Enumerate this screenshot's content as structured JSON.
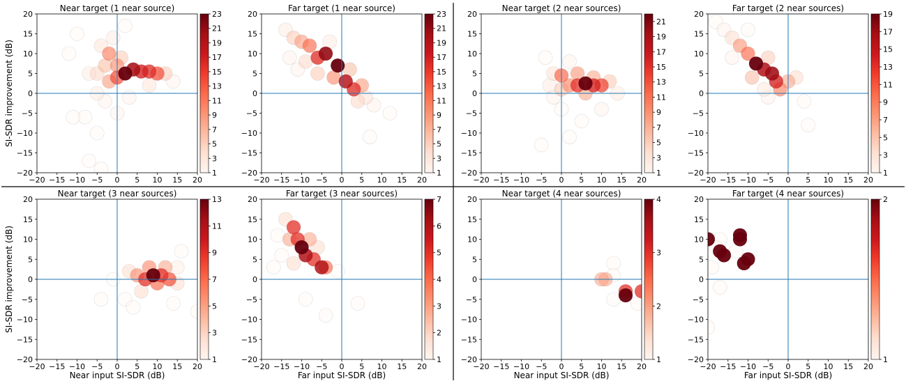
{
  "chart_data": [
    {
      "type": "scatter",
      "title": "Near target (1 near source)",
      "xlabel": "",
      "ylabel": "SI-SDR improvement (dB)",
      "xlim": [
        -20,
        20
      ],
      "ylim": [
        -20,
        20
      ],
      "xticks": [
        "−20",
        "−15",
        "−10",
        "−5",
        "0",
        "5",
        "10",
        "15",
        "20"
      ],
      "yticks": [
        "20",
        "15",
        "10",
        "5",
        "0",
        "−5",
        "−10",
        "−15",
        "−20"
      ],
      "colorbar": {
        "min": 1,
        "max": 23,
        "ticks": [
          "1",
          "3",
          "5",
          "7",
          "9",
          "11",
          "13",
          "15",
          "17",
          "19",
          "21",
          "23"
        ]
      },
      "clusters": [
        {
          "x": 2,
          "y": 5,
          "count": 23
        },
        {
          "x": 4,
          "y": 6,
          "count": 20
        },
        {
          "x": 6,
          "y": 5.5,
          "count": 17
        },
        {
          "x": 8,
          "y": 5.5,
          "count": 16
        },
        {
          "x": 10,
          "y": 5,
          "count": 14
        },
        {
          "x": 0,
          "y": 4,
          "count": 14
        },
        {
          "x": -2,
          "y": 3,
          "count": 9
        },
        {
          "x": -2,
          "y": 10,
          "count": 11
        },
        {
          "x": -3,
          "y": 7,
          "count": 7
        },
        {
          "x": -5,
          "y": 5,
          "count": 5
        },
        {
          "x": 0,
          "y": 7,
          "count": 10
        },
        {
          "x": 12,
          "y": 5,
          "count": 6
        },
        {
          "x": -4,
          "y": 12,
          "count": 4
        },
        {
          "x": -7,
          "y": 5,
          "count": 3
        },
        {
          "x": -1,
          "y": 14,
          "count": 3
        },
        {
          "x": 1,
          "y": 9,
          "count": 6
        },
        {
          "x": -5,
          "y": 0,
          "count": 3
        },
        {
          "x": -3,
          "y": -2,
          "count": 2
        },
        {
          "x": -8,
          "y": -6,
          "count": 1
        },
        {
          "x": -11,
          "y": -6,
          "count": 1
        },
        {
          "x": -5,
          "y": -10,
          "count": 1
        },
        {
          "x": -7,
          "y": -17,
          "count": 1
        },
        {
          "x": -4,
          "y": -19,
          "count": 1
        },
        {
          "x": 0,
          "y": -5,
          "count": 2
        },
        {
          "x": 3,
          "y": -1,
          "count": 2
        },
        {
          "x": -10,
          "y": 15,
          "count": 1
        },
        {
          "x": -12,
          "y": 10,
          "count": 1
        },
        {
          "x": 2,
          "y": 17,
          "count": 1
        },
        {
          "x": 14,
          "y": 3,
          "count": 2
        },
        {
          "x": 8,
          "y": 2,
          "count": 4
        }
      ]
    },
    {
      "type": "scatter",
      "title": "Far target (1 near source)",
      "xlabel": "",
      "ylabel": "",
      "xlim": [
        -20,
        20
      ],
      "ylim": [
        -20,
        20
      ],
      "xticks": [
        "−20",
        "−15",
        "−10",
        "−5",
        "0",
        "5",
        "10",
        "15",
        "20"
      ],
      "yticks": [
        "20",
        "15",
        "10",
        "5",
        "0",
        "−5",
        "−10",
        "−15",
        "−20"
      ],
      "colorbar": {
        "min": 1,
        "max": 23,
        "ticks": [
          "1",
          "3",
          "5",
          "7",
          "9",
          "11",
          "13",
          "15",
          "17",
          "19",
          "21",
          "23"
        ]
      },
      "clusters": [
        {
          "x": -4,
          "y": 10,
          "count": 21
        },
        {
          "x": -1,
          "y": 7,
          "count": 23
        },
        {
          "x": 1,
          "y": 3,
          "count": 19
        },
        {
          "x": 3,
          "y": 1,
          "count": 16
        },
        {
          "x": -6,
          "y": 9,
          "count": 16
        },
        {
          "x": -8,
          "y": 12,
          "count": 12
        },
        {
          "x": -10,
          "y": 13,
          "count": 9
        },
        {
          "x": -12,
          "y": 14,
          "count": 6
        },
        {
          "x": -14,
          "y": 16,
          "count": 3
        },
        {
          "x": 5,
          "y": 2,
          "count": 9
        },
        {
          "x": 6,
          "y": -1,
          "count": 4
        },
        {
          "x": -2,
          "y": 4,
          "count": 10
        },
        {
          "x": -6,
          "y": 5,
          "count": 6
        },
        {
          "x": 2,
          "y": 6,
          "count": 7
        },
        {
          "x": -9,
          "y": 8,
          "count": 5
        },
        {
          "x": 8,
          "y": -3,
          "count": 2
        },
        {
          "x": 12,
          "y": -5,
          "count": 1
        },
        {
          "x": 7,
          "y": -11,
          "count": 1
        },
        {
          "x": -13,
          "y": 9,
          "count": 2
        },
        {
          "x": -11,
          "y": 6,
          "count": 2
        },
        {
          "x": -3,
          "y": 13,
          "count": 3
        },
        {
          "x": 4,
          "y": -2,
          "count": 5
        }
      ]
    },
    {
      "type": "scatter",
      "title": "Near target (2 near sources)",
      "xlabel": "",
      "ylabel": "",
      "xlim": [
        -20,
        20
      ],
      "ylim": [
        -20,
        20
      ],
      "xticks": [
        "−20",
        "−15",
        "−10",
        "−5",
        "0",
        "5",
        "10",
        "15",
        "20"
      ],
      "yticks": [
        "20",
        "15",
        "10",
        "5",
        "0",
        "−5",
        "−10",
        "−15",
        "−20"
      ],
      "colorbar": {
        "min": 1,
        "max": 22,
        "ticks": [
          "1",
          "3",
          "5",
          "7",
          "9",
          "11",
          "13",
          "15",
          "17",
          "19",
          "21"
        ]
      },
      "clusters": [
        {
          "x": 6,
          "y": 2.5,
          "count": 22
        },
        {
          "x": 4,
          "y": 2,
          "count": 15
        },
        {
          "x": 8,
          "y": 2,
          "count": 16
        },
        {
          "x": 10,
          "y": 2,
          "count": 14
        },
        {
          "x": 2,
          "y": 2,
          "count": 10
        },
        {
          "x": 0,
          "y": 4.5,
          "count": 12
        },
        {
          "x": 4,
          "y": 5,
          "count": 9
        },
        {
          "x": 8,
          "y": 4,
          "count": 8
        },
        {
          "x": 12,
          "y": 3,
          "count": 6
        },
        {
          "x": 6,
          "y": 0,
          "count": 8
        },
        {
          "x": 0,
          "y": 1,
          "count": 6
        },
        {
          "x": -2,
          "y": 5,
          "count": 4
        },
        {
          "x": -3,
          "y": 2,
          "count": 3
        },
        {
          "x": -2,
          "y": -1,
          "count": 2
        },
        {
          "x": 0,
          "y": -4,
          "count": 1
        },
        {
          "x": 2,
          "y": -11,
          "count": 1
        },
        {
          "x": -5,
          "y": -13,
          "count": 1
        },
        {
          "x": -4,
          "y": 9,
          "count": 1
        },
        {
          "x": 2,
          "y": 8,
          "count": 2
        },
        {
          "x": 14,
          "y": 0,
          "count": 3
        },
        {
          "x": 10,
          "y": -4,
          "count": 2
        },
        {
          "x": 5,
          "y": -7,
          "count": 1
        }
      ]
    },
    {
      "type": "scatter",
      "title": "Far target (2 near sources)",
      "xlabel": "",
      "ylabel": "",
      "xlim": [
        -20,
        20
      ],
      "ylim": [
        -20,
        20
      ],
      "xticks": [
        "−20",
        "−15",
        "−10",
        "−5",
        "0",
        "5",
        "10",
        "15",
        "20"
      ],
      "yticks": [
        "20",
        "15",
        "10",
        "5",
        "0",
        "−5",
        "−10",
        "−15",
        "−20"
      ],
      "colorbar": {
        "min": 1,
        "max": 19,
        "ticks": [
          "1",
          "3",
          "5",
          "7",
          "9",
          "11",
          "13",
          "15",
          "17",
          "19"
        ]
      },
      "clusters": [
        {
          "x": -8,
          "y": 7.5,
          "count": 19
        },
        {
          "x": -6,
          "y": 6,
          "count": 16
        },
        {
          "x": -4,
          "y": 5,
          "count": 17
        },
        {
          "x": -3,
          "y": 3,
          "count": 14
        },
        {
          "x": -10,
          "y": 10,
          "count": 10
        },
        {
          "x": -12,
          "y": 12,
          "count": 8
        },
        {
          "x": -2,
          "y": 1,
          "count": 9
        },
        {
          "x": 0,
          "y": 3,
          "count": 7
        },
        {
          "x": -5,
          "y": 9,
          "count": 5
        },
        {
          "x": -14,
          "y": 14,
          "count": 4
        },
        {
          "x": -9,
          "y": 4,
          "count": 6
        },
        {
          "x": 2,
          "y": 4,
          "count": 4
        },
        {
          "x": -6,
          "y": 1,
          "count": 3
        },
        {
          "x": -16,
          "y": 16,
          "count": 2
        },
        {
          "x": -18,
          "y": 18,
          "count": 1
        },
        {
          "x": -10,
          "y": 16,
          "count": 1
        },
        {
          "x": -5,
          "y": -1,
          "count": 2
        },
        {
          "x": 4,
          "y": -2,
          "count": 1
        },
        {
          "x": 5,
          "y": -8,
          "count": 1
        },
        {
          "x": -14,
          "y": 9,
          "count": 2
        }
      ]
    },
    {
      "type": "scatter",
      "title": "Near target (3 near sources)",
      "xlabel": "Near input SI-SDR (dB)",
      "ylabel": "SI-SDR improvement (dB)",
      "xlim": [
        -20,
        20
      ],
      "ylim": [
        -20,
        20
      ],
      "xticks": [
        "−20",
        "−15",
        "−10",
        "−5",
        "0",
        "5",
        "10",
        "15",
        "20"
      ],
      "yticks": [
        "20",
        "15",
        "10",
        "5",
        "0",
        "−5",
        "−10",
        "−15",
        "−20"
      ],
      "colorbar": {
        "min": 1,
        "max": 13,
        "ticks": [
          "1",
          "3",
          "5",
          "7",
          "9",
          "11",
          "13"
        ]
      },
      "clusters": [
        {
          "x": 9,
          "y": 1,
          "count": 13
        },
        {
          "x": 7,
          "y": 0,
          "count": 9
        },
        {
          "x": 11,
          "y": 1,
          "count": 9
        },
        {
          "x": 13,
          "y": 0,
          "count": 8
        },
        {
          "x": 5,
          "y": 1,
          "count": 6
        },
        {
          "x": 8,
          "y": 3,
          "count": 6
        },
        {
          "x": 12,
          "y": 3,
          "count": 5
        },
        {
          "x": 10,
          "y": -1,
          "count": 7
        },
        {
          "x": 6,
          "y": -3,
          "count": 3
        },
        {
          "x": 15,
          "y": -1,
          "count": 3
        },
        {
          "x": 3,
          "y": 2,
          "count": 3
        },
        {
          "x": 15,
          "y": 3,
          "count": 2
        },
        {
          "x": -4,
          "y": -5,
          "count": 1
        },
        {
          "x": 2,
          "y": -5,
          "count": 1
        },
        {
          "x": 4,
          "y": -7,
          "count": 1
        },
        {
          "x": 16,
          "y": 7,
          "count": 1
        },
        {
          "x": 14,
          "y": -6,
          "count": 1
        },
        {
          "x": -1,
          "y": 0,
          "count": 1
        },
        {
          "x": 20,
          "y": -8,
          "count": 1
        }
      ]
    },
    {
      "type": "scatter",
      "title": "Far target (3 near sources)",
      "xlabel": "Far input SI-SDR (dB)",
      "ylabel": "",
      "xlim": [
        -20,
        20
      ],
      "ylim": [
        -20,
        20
      ],
      "xticks": [
        "−20",
        "−15",
        "−10",
        "−5",
        "0",
        "5",
        "10",
        "15",
        "20"
      ],
      "yticks": [
        "20",
        "15",
        "10",
        "5",
        "0",
        "−5",
        "−10",
        "−15",
        "−20"
      ],
      "colorbar": {
        "min": 1,
        "max": 7,
        "ticks": [
          "1",
          "2",
          "3",
          "4",
          "5",
          "6",
          "7"
        ]
      },
      "clusters": [
        {
          "x": -10,
          "y": 8,
          "count": 7
        },
        {
          "x": -12,
          "y": 13,
          "count": 5
        },
        {
          "x": -11,
          "y": 10,
          "count": 5
        },
        {
          "x": -9,
          "y": 6,
          "count": 6
        },
        {
          "x": -7,
          "y": 5,
          "count": 5
        },
        {
          "x": -5,
          "y": 3,
          "count": 6
        },
        {
          "x": -4,
          "y": 3,
          "count": 4
        },
        {
          "x": -13,
          "y": 10,
          "count": 3
        },
        {
          "x": -8,
          "y": 10,
          "count": 3
        },
        {
          "x": -6,
          "y": 8,
          "count": 2
        },
        {
          "x": -14,
          "y": 15,
          "count": 2
        },
        {
          "x": -15,
          "y": 6,
          "count": 1
        },
        {
          "x": -17,
          "y": 3,
          "count": 1
        },
        {
          "x": -9,
          "y": -5,
          "count": 1
        },
        {
          "x": -4,
          "y": -9,
          "count": 1
        },
        {
          "x": 4,
          "y": -6,
          "count": 1
        },
        {
          "x": -1,
          "y": 2,
          "count": 1
        },
        {
          "x": -12,
          "y": 4,
          "count": 2
        },
        {
          "x": -16,
          "y": 11,
          "count": 1
        }
      ]
    },
    {
      "type": "scatter",
      "title": "Near target (4 near sources)",
      "xlabel": "Near input SI-SDR (dB)",
      "ylabel": "",
      "xlim": [
        -20,
        20
      ],
      "ylim": [
        -20,
        20
      ],
      "xticks": [
        "−20",
        "−15",
        "−10",
        "−5",
        "0",
        "5",
        "10",
        "15",
        "20"
      ],
      "yticks": [
        "20",
        "15",
        "10",
        "5",
        "0",
        "−5",
        "−10",
        "−15",
        "−20"
      ],
      "colorbar": {
        "min": 1,
        "max": 4,
        "ticks": [
          "1",
          "2",
          "3",
          "4"
        ]
      },
      "clusters": [
        {
          "x": 16,
          "y": -4,
          "count": 4
        },
        {
          "x": 16,
          "y": -3,
          "count": 3
        },
        {
          "x": 20,
          "y": -3,
          "count": 3
        },
        {
          "x": 11,
          "y": 0,
          "count": 2
        },
        {
          "x": 10,
          "y": 0,
          "count": 2
        },
        {
          "x": 13,
          "y": 4,
          "count": 1
        },
        {
          "x": 13,
          "y": 1,
          "count": 1
        },
        {
          "x": 13,
          "y": -5,
          "count": 1
        },
        {
          "x": 19,
          "y": -6,
          "count": 1
        }
      ]
    },
    {
      "type": "scatter",
      "title": "Far target (4 near sources)",
      "xlabel": "Far input SI-SDR (dB)",
      "ylabel": "",
      "xlim": [
        -20,
        20
      ],
      "ylim": [
        -20,
        20
      ],
      "xticks": [
        "−20",
        "−15",
        "−10",
        "−5",
        "0",
        "5",
        "10",
        "15",
        "20"
      ],
      "yticks": [
        "20",
        "15",
        "10",
        "5",
        "0",
        "−5",
        "−10",
        "−15",
        "−20"
      ],
      "colorbar": {
        "min": 1,
        "max": 2,
        "ticks": [
          "1",
          "2"
        ]
      },
      "clusters": [
        {
          "x": -20,
          "y": 10,
          "count": 2
        },
        {
          "x": -12,
          "y": 11,
          "count": 2
        },
        {
          "x": -12,
          "y": 10,
          "count": 2
        },
        {
          "x": -17,
          "y": 7,
          "count": 2
        },
        {
          "x": -16,
          "y": 6,
          "count": 2
        },
        {
          "x": -10,
          "y": 5,
          "count": 2
        },
        {
          "x": -11,
          "y": 4,
          "count": 2
        },
        {
          "x": -17,
          "y": 10,
          "count": 1
        },
        {
          "x": -18,
          "y": 8,
          "count": 1
        },
        {
          "x": -19,
          "y": 3,
          "count": 1
        },
        {
          "x": -17,
          "y": -2,
          "count": 1
        },
        {
          "x": -20,
          "y": -12,
          "count": 1
        },
        {
          "x": -13,
          "y": 7,
          "count": 1
        }
      ]
    }
  ]
}
